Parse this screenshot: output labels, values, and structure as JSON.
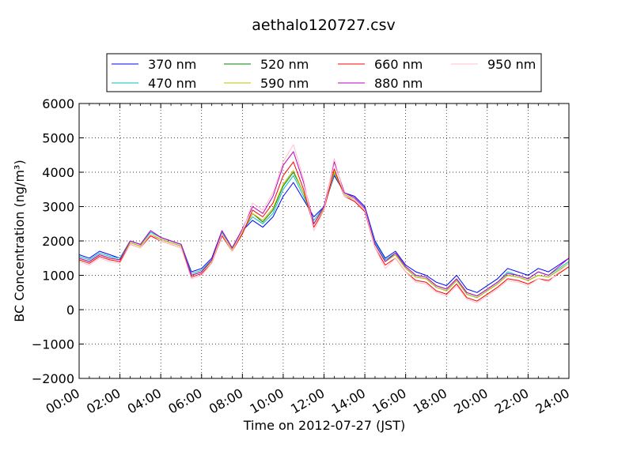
{
  "chart_data": {
    "type": "line",
    "title": "aethalo120727.csv",
    "xlabel": "Time on 2012-07-27 (JST)",
    "ylabel": "BC Concentration (ng/m³)",
    "ylim": [
      -2000,
      6000
    ],
    "xlim": [
      "00:00",
      "24:00"
    ],
    "grid": true,
    "legend_position": "top, above plot",
    "x_ticks": [
      "00:00",
      "02:00",
      "04:00",
      "06:00",
      "08:00",
      "10:00",
      "12:00",
      "14:00",
      "16:00",
      "18:00",
      "20:00",
      "22:00",
      "24:00"
    ],
    "y_ticks": [
      "−2000",
      "−1000",
      "0",
      "1000",
      "2000",
      "3000",
      "4000",
      "5000",
      "6000"
    ],
    "x": [
      "00:00",
      "00:30",
      "01:00",
      "01:30",
      "02:00",
      "02:30",
      "03:00",
      "03:30",
      "04:00",
      "04:30",
      "05:00",
      "05:30",
      "06:00",
      "06:30",
      "07:00",
      "07:30",
      "08:00",
      "08:30",
      "09:00",
      "09:30",
      "10:00",
      "10:30",
      "11:00",
      "11:30",
      "12:00",
      "12:30",
      "13:00",
      "13:30",
      "14:00",
      "14:30",
      "15:00",
      "15:30",
      "16:00",
      "16:30",
      "17:00",
      "17:30",
      "18:00",
      "18:30",
      "19:00",
      "19:30",
      "20:00",
      "20:30",
      "21:00",
      "21:30",
      "22:00",
      "22:30",
      "23:00",
      "23:30",
      "24:00"
    ],
    "series": [
      {
        "name": "370 nm",
        "color": "#0000ff",
        "values": [
          1600,
          1500,
          1700,
          1600,
          1500,
          2000,
          1900,
          2300,
          2100,
          2000,
          1900,
          1100,
          1200,
          1500,
          2300,
          1800,
          2300,
          2600,
          2400,
          2700,
          3300,
          3700,
          3200,
          2700,
          3000,
          3900,
          3400,
          3300,
          3000,
          2000,
          1500,
          1700,
          1300,
          1100,
          1000,
          800,
          700,
          1000,
          600,
          500,
          700,
          900,
          1200,
          1100,
          1000,
          1200,
          1100,
          1300,
          1500
        ]
      },
      {
        "name": "470 nm",
        "color": "#00bfbf",
        "values": [
          1550,
          1450,
          1650,
          1550,
          1500,
          2000,
          1900,
          2250,
          2100,
          2000,
          1900,
          1050,
          1150,
          1450,
          2250,
          1800,
          2300,
          2700,
          2500,
          2800,
          3500,
          3900,
          3300,
          2600,
          3000,
          3950,
          3400,
          3250,
          2950,
          1950,
          1450,
          1650,
          1250,
          1000,
          950,
          700,
          600,
          900,
          500,
          400,
          600,
          800,
          1100,
          1000,
          900,
          1100,
          1000,
          1200,
          1400
        ]
      },
      {
        "name": "520 nm",
        "color": "#008000",
        "values": [
          1500,
          1400,
          1600,
          1500,
          1450,
          1950,
          1850,
          2200,
          2050,
          1950,
          1850,
          1000,
          1100,
          1400,
          2200,
          1750,
          2250,
          2800,
          2550,
          2900,
          3600,
          4000,
          3400,
          2500,
          2950,
          4000,
          3350,
          3200,
          2900,
          1900,
          1400,
          1600,
          1200,
          950,
          900,
          650,
          550,
          850,
          450,
          350,
          550,
          750,
          1000,
          950,
          850,
          1000,
          950,
          1150,
          1350
        ]
      },
      {
        "name": "590 nm",
        "color": "#bfbf00",
        "values": [
          1500,
          1400,
          1600,
          1500,
          1450,
          1950,
          1850,
          2200,
          2050,
          1950,
          1850,
          1000,
          1100,
          1400,
          2200,
          1750,
          2250,
          2800,
          2600,
          2950,
          3650,
          4050,
          3400,
          2500,
          2950,
          4000,
          3350,
          3200,
          2900,
          1900,
          1400,
          1600,
          1200,
          950,
          900,
          650,
          550,
          850,
          450,
          350,
          550,
          750,
          1000,
          950,
          850,
          1000,
          950,
          1150,
          1350
        ]
      },
      {
        "name": "660 nm",
        "color": "#ff0000",
        "values": [
          1450,
          1350,
          1550,
          1450,
          1400,
          1900,
          1800,
          2150,
          2000,
          1900,
          1800,
          950,
          1050,
          1350,
          2150,
          1700,
          2200,
          2900,
          2700,
          3100,
          3900,
          4300,
          3500,
          2400,
          2900,
          4100,
          3300,
          3150,
          2850,
          1800,
          1300,
          1500,
          1100,
          850,
          800,
          550,
          450,
          750,
          350,
          250,
          450,
          650,
          900,
          850,
          750,
          900,
          850,
          1050,
          1250
        ]
      },
      {
        "name": "880 nm",
        "color": "#bf00bf",
        "values": [
          1500,
          1400,
          1600,
          1500,
          1450,
          2000,
          1900,
          2300,
          2100,
          2000,
          1900,
          1000,
          1100,
          1450,
          2300,
          1800,
          2350,
          3000,
          2800,
          3300,
          4200,
          4600,
          3700,
          2500,
          3000,
          4300,
          3400,
          3250,
          2950,
          1900,
          1400,
          1650,
          1250,
          1000,
          950,
          700,
          600,
          900,
          500,
          400,
          600,
          800,
          1050,
          1000,
          900,
          1100,
          1000,
          1250,
          1500
        ]
      },
      {
        "name": "950 nm",
        "color": "#ffc0cb",
        "values": [
          1400,
          1300,
          1500,
          1400,
          1350,
          1900,
          1800,
          2200,
          2000,
          1900,
          1800,
          900,
          1000,
          1350,
          2200,
          1700,
          2300,
          3100,
          2900,
          3400,
          4300,
          4800,
          3800,
          2300,
          2900,
          4400,
          3300,
          3200,
          2900,
          1800,
          1200,
          1500,
          1100,
          800,
          750,
          500,
          400,
          700,
          300,
          200,
          400,
          600,
          850,
          800,
          700,
          900,
          800,
          1100,
          1350
        ]
      }
    ]
  }
}
